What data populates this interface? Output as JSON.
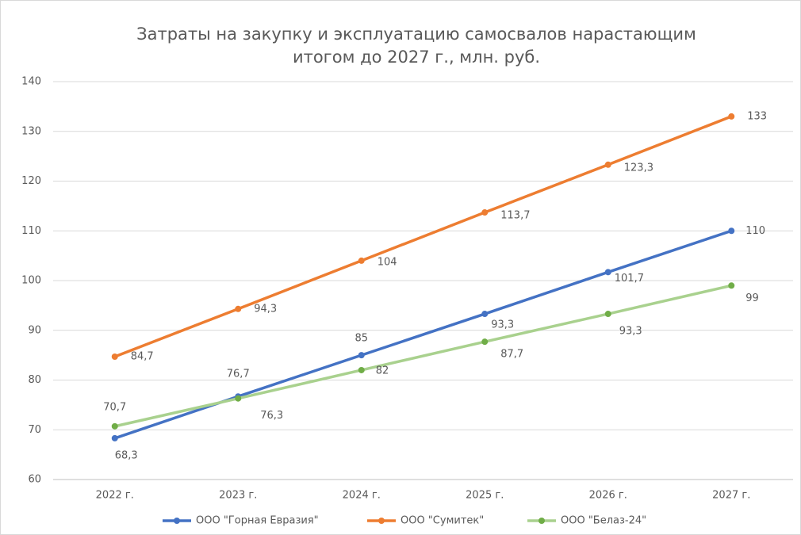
{
  "chart_data": {
    "type": "line",
    "title": [
      "Затраты на закупку и эксплуатацию самосвалов нарастающим",
      "итогом до 2027 г., млн. руб."
    ],
    "categories": [
      "2022 г.",
      "2023 г.",
      "2024 г.",
      "2025 г.",
      "2026 г.",
      "2027 г."
    ],
    "series": [
      {
        "name": "ООО \"Горная Евразия\"",
        "color": "#4472c4",
        "marker_color": "#4472c4",
        "values": [
          68.3,
          76.7,
          85,
          93.3,
          101.7,
          110
        ],
        "value_labels": [
          "68,3",
          "76,7",
          "85",
          "93,3",
          "101,7",
          "110"
        ]
      },
      {
        "name": "ООО \"Сумитек\"",
        "color": "#ed7d31",
        "marker_color": "#ed7d31",
        "values": [
          84.7,
          94.3,
          104,
          113.7,
          123.3,
          133
        ],
        "value_labels": [
          "84,7",
          "94,3",
          "104",
          "113,7",
          "123,3",
          "133"
        ]
      },
      {
        "name": "ООО \"Белаз-24\"",
        "color": "#a9d18e",
        "marker_color": "#70ad47",
        "values": [
          70.7,
          76.3,
          82,
          87.7,
          93.3,
          99
        ],
        "value_labels": [
          "70,7",
          "76,3",
          "82",
          "87,7",
          "93,3",
          "99"
        ]
      }
    ],
    "ylim": [
      60,
      140
    ],
    "yticks": [
      60,
      70,
      80,
      90,
      100,
      110,
      120,
      130,
      140
    ],
    "grid": true,
    "legend": "bottom"
  }
}
